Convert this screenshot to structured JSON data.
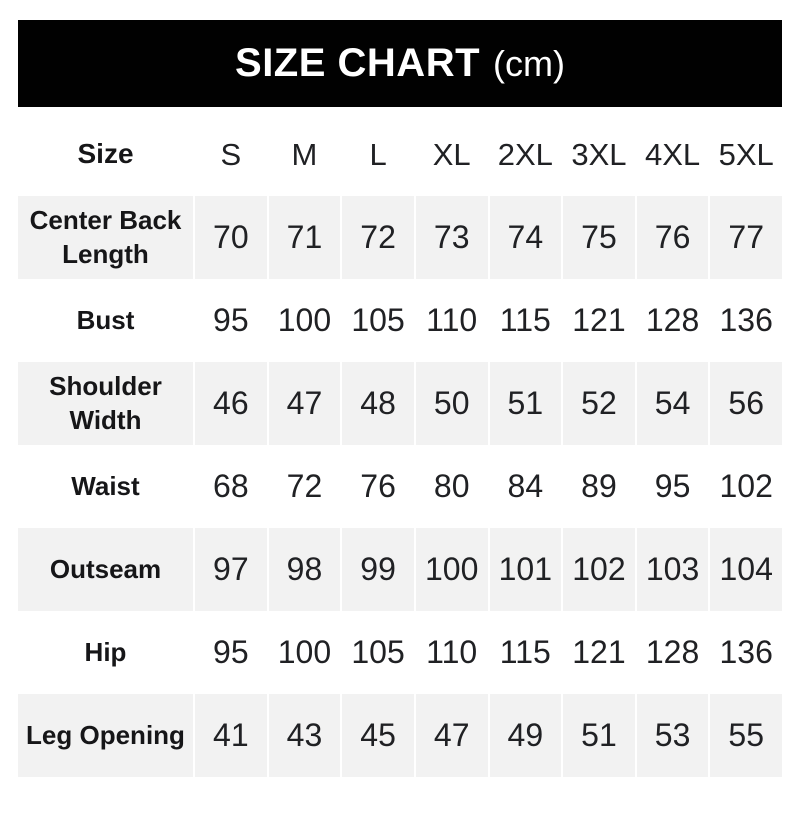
{
  "title": {
    "main": "SIZE CHART",
    "unit": "(cm)"
  },
  "table": {
    "header": {
      "label": "Size",
      "columns": [
        "S",
        "M",
        "L",
        "XL",
        "2XL",
        "3XL",
        "4XL",
        "5XL"
      ]
    },
    "rows": [
      {
        "label": "Center Back Length",
        "values": [
          70,
          71,
          72,
          73,
          74,
          75,
          76,
          77
        ]
      },
      {
        "label": "Bust",
        "values": [
          95,
          100,
          105,
          110,
          115,
          121,
          128,
          136
        ]
      },
      {
        "label": "Shoulder Width",
        "values": [
          46,
          47,
          48,
          50,
          51,
          52,
          54,
          56
        ]
      },
      {
        "label": "Waist",
        "values": [
          68,
          72,
          76,
          80,
          84,
          89,
          95,
          102
        ]
      },
      {
        "label": "Outseam",
        "values": [
          97,
          98,
          99,
          100,
          101,
          102,
          103,
          104
        ]
      },
      {
        "label": "Hip",
        "values": [
          95,
          100,
          105,
          110,
          115,
          121,
          128,
          136
        ]
      },
      {
        "label": "Leg Opening",
        "values": [
          41,
          43,
          45,
          47,
          49,
          51,
          53,
          55
        ]
      }
    ]
  },
  "colors": {
    "title_bg": "#010101",
    "title_text": "#ffffff",
    "alt_row_bg": "#f2f2f2",
    "text": "#202124",
    "page_bg": "#ffffff"
  },
  "chart_data": {
    "type": "table",
    "title": "SIZE CHART (cm)",
    "unit": "cm",
    "columns": [
      "Size",
      "S",
      "M",
      "L",
      "XL",
      "2XL",
      "3XL",
      "4XL",
      "5XL"
    ],
    "rows": [
      [
        "Center Back Length",
        70,
        71,
        72,
        73,
        74,
        75,
        76,
        77
      ],
      [
        "Bust",
        95,
        100,
        105,
        110,
        115,
        121,
        128,
        136
      ],
      [
        "Shoulder Width",
        46,
        47,
        48,
        50,
        51,
        52,
        54,
        56
      ],
      [
        "Waist",
        68,
        72,
        76,
        80,
        84,
        89,
        95,
        102
      ],
      [
        "Outseam",
        97,
        98,
        99,
        100,
        101,
        102,
        103,
        104
      ],
      [
        "Hip",
        95,
        100,
        105,
        110,
        115,
        121,
        128,
        136
      ],
      [
        "Leg Opening",
        41,
        43,
        45,
        47,
        49,
        51,
        53,
        55
      ]
    ],
    "layout": {
      "alternating_row_shading": true,
      "header_bar": "black",
      "grid": "white 2px gutters between columns"
    }
  }
}
